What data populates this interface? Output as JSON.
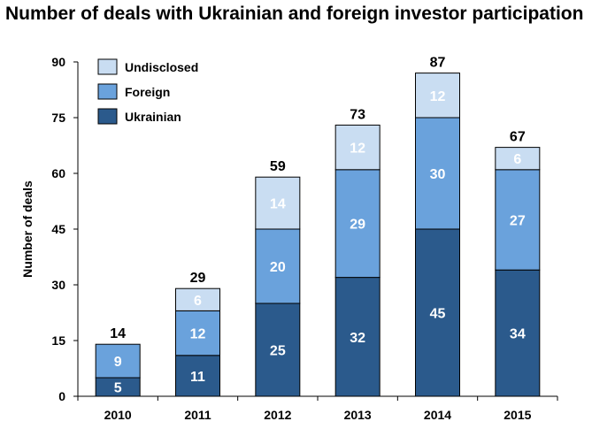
{
  "chart_data": {
    "type": "bar",
    "stacked": true,
    "title": "Number of deals with Ukrainian and foreign investor participation",
    "xlabel": "",
    "ylabel": "Number of deals",
    "ylim": [
      0,
      90
    ],
    "yticks": [
      "0",
      "15",
      "30",
      "45",
      "60",
      "75",
      "90"
    ],
    "categories": [
      "2010",
      "2011",
      "2012",
      "2013",
      "2014",
      "2015"
    ],
    "series": [
      {
        "name": "Ukrainian",
        "values": [
          5,
          11,
          25,
          32,
          45,
          34
        ],
        "color": "#2b5a8c"
      },
      {
        "name": "Foreign",
        "values": [
          9,
          12,
          20,
          29,
          30,
          27
        ],
        "color": "#6aa2dc"
      },
      {
        "name": "Undisclosed",
        "values": [
          0,
          6,
          14,
          12,
          12,
          6
        ],
        "color": "#c9ddf2"
      }
    ],
    "totals": [
      14,
      29,
      59,
      73,
      87,
      67
    ],
    "legend": {
      "position": "top-left",
      "order": [
        "Undisclosed",
        "Foreign",
        "Ukrainian"
      ]
    },
    "grid": false
  }
}
